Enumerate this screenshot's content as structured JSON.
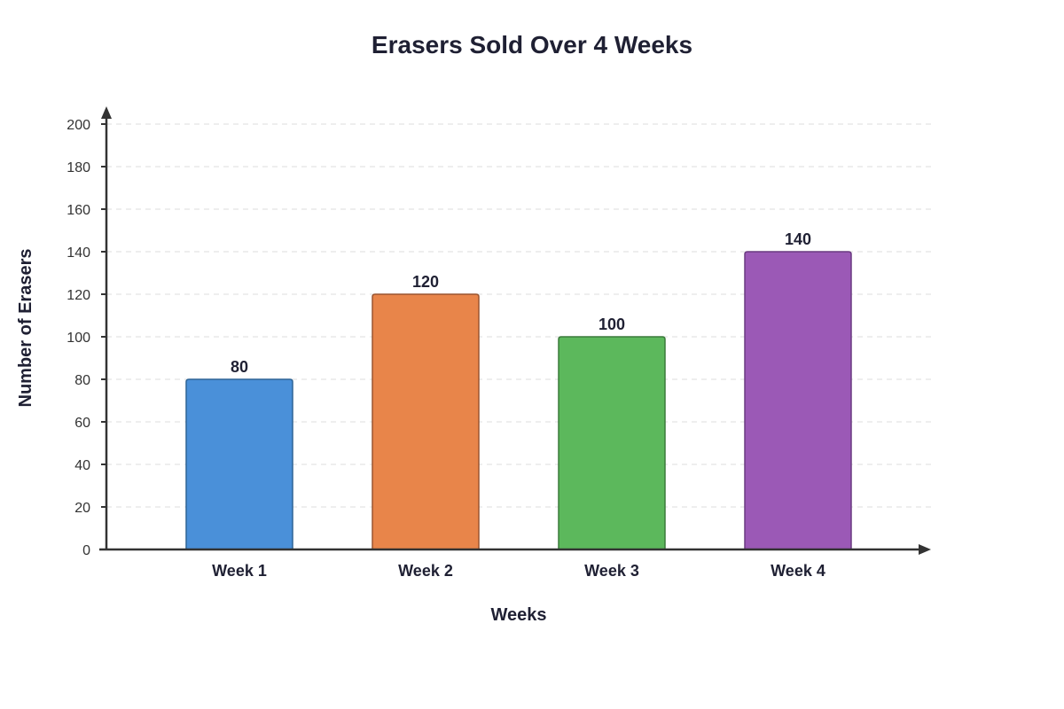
{
  "chart_data": {
    "type": "bar",
    "title": "Erasers Sold Over 4 Weeks",
    "xlabel": "Weeks",
    "ylabel": "Number of Erasers",
    "categories": [
      "Week 1",
      "Week 2",
      "Week 3",
      "Week 4"
    ],
    "values": [
      80,
      120,
      100,
      140
    ],
    "data_labels": [
      "80",
      "120",
      "100",
      "140"
    ],
    "yticks": [
      0,
      20,
      40,
      60,
      80,
      100,
      120,
      140,
      160,
      180,
      200
    ],
    "ylim": [
      0,
      200
    ],
    "grid": true,
    "legend": "none",
    "colors": {
      "bars": [
        "#4a90d9",
        "#e8854a",
        "#5cb85c",
        "#9b59b6"
      ],
      "bar_strokes": [
        "#2e6496",
        "#9a5530",
        "#3a7a3a",
        "#6a3a80"
      ]
    }
  }
}
